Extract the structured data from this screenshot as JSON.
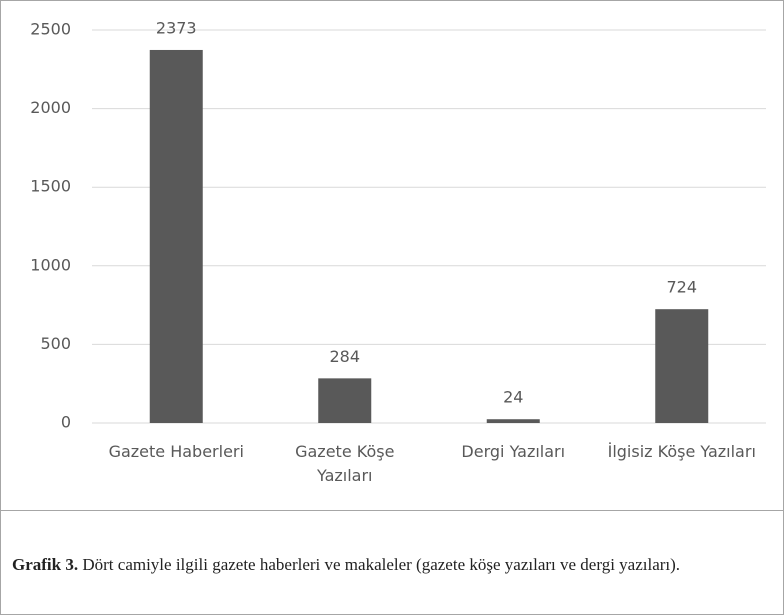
{
  "chart_data": {
    "type": "bar",
    "categories": [
      "Gazete Haberleri",
      "Gazete Köşe Yazıları",
      "Dergi Yazıları",
      "İlgisiz Köşe Yazıları"
    ],
    "values": [
      2373,
      284,
      24,
      724
    ],
    "color": "#595959",
    "ylim": [
      0,
      2500
    ],
    "yticks": [
      0,
      500,
      1000,
      1500,
      2000,
      2500
    ],
    "grid": true
  },
  "caption": {
    "label": "Grafik 3.",
    "text": " Dört camiyle ilgili gazete haberleri ve makaleler (gazete köşe yazıları ve dergi yazıları)."
  }
}
